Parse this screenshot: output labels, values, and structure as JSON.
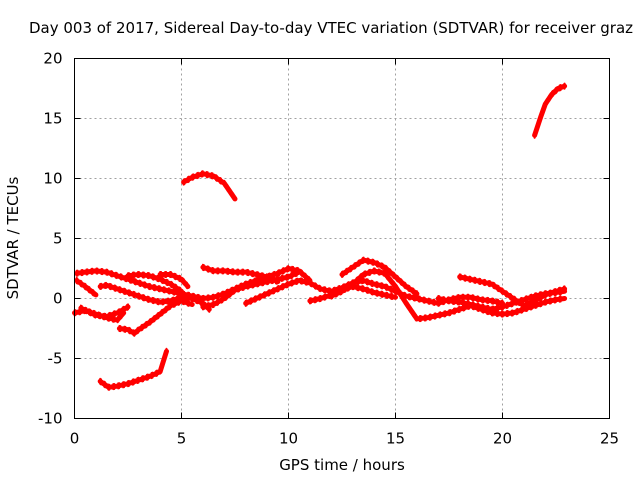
{
  "chart_data": {
    "type": "line",
    "title": "Day 003 of 2017, Sidereal Day-to-day VTEC variation (SDTVAR) for receiver graz",
    "xlabel": "GPS time / hours",
    "ylabel": "SDTVAR / TECUs",
    "xlim": [
      0,
      25
    ],
    "ylim": [
      -10,
      20
    ],
    "xticks": [
      0,
      5,
      10,
      15,
      20,
      25
    ],
    "yticks": [
      -10,
      -5,
      0,
      5,
      10,
      15,
      20
    ],
    "xtick_labels": [
      "0",
      "5",
      "10",
      "15",
      "20",
      "25"
    ],
    "ytick_labels": [
      "-10",
      "-5",
      "0",
      "5",
      "10",
      "15",
      "20"
    ],
    "grid": true,
    "color": "#ff0000",
    "series": [
      {
        "name": "s1",
        "x": [
          0.1,
          0.5,
          1.0,
          1.5,
          2.0,
          2.5,
          3.0,
          3.5,
          4.0,
          4.5,
          5.0,
          5.5,
          6.0,
          6.5,
          7.0,
          7.5,
          8.0,
          8.5,
          9.0,
          9.5,
          10.0,
          10.5,
          11.0
        ],
        "y": [
          2.1,
          2.2,
          2.3,
          2.2,
          1.9,
          1.6,
          1.3,
          1.0,
          0.8,
          0.6,
          0.4,
          0.2,
          0.0,
          0.1,
          0.4,
          0.8,
          1.2,
          1.5,
          1.8,
          2.1,
          2.5,
          2.3,
          1.5
        ]
      },
      {
        "name": "s2",
        "x": [
          0.1,
          0.5,
          1.0
        ],
        "y": [
          1.5,
          1.0,
          0.3
        ]
      },
      {
        "name": "s3",
        "x": [
          0.0,
          0.5,
          1.0,
          1.5,
          2.0,
          2.3
        ],
        "y": [
          -1.2,
          -1.0,
          -1.3,
          -1.6,
          -1.8,
          -1.2
        ]
      },
      {
        "name": "s4",
        "x": [
          0.3,
          1.0,
          1.5,
          2.0,
          2.5
        ],
        "y": [
          -0.8,
          -1.4,
          -1.5,
          -1.2,
          -0.7
        ]
      },
      {
        "name": "s5",
        "x": [
          1.2,
          1.6,
          2.0,
          2.5,
          3.0,
          3.5,
          4.0,
          4.3
        ],
        "y": [
          -6.9,
          -7.4,
          -7.3,
          -7.1,
          -6.8,
          -6.5,
          -6.1,
          -4.4
        ]
      },
      {
        "name": "s6",
        "x": [
          1.2,
          1.5,
          2.0,
          2.5,
          3.0,
          3.5,
          4.0,
          4.5,
          5.0,
          5.5,
          6.0,
          6.3
        ],
        "y": [
          1.0,
          1.1,
          0.8,
          0.5,
          0.2,
          -0.1,
          -0.3,
          -0.2,
          0.1,
          0.0,
          -0.4,
          -0.9
        ]
      },
      {
        "name": "s7",
        "x": [
          2.1,
          2.5,
          2.8,
          3.0,
          3.5,
          4.0,
          4.5,
          5.0,
          5.5
        ],
        "y": [
          -2.5,
          -2.6,
          -2.9,
          -2.6,
          -2.0,
          -1.3,
          -0.6,
          -0.2,
          -0.5
        ]
      },
      {
        "name": "s8",
        "x": [
          2.5,
          3.0,
          3.5,
          4.0,
          4.5,
          5.0
        ],
        "y": [
          1.9,
          2.0,
          1.9,
          1.6,
          1.2,
          0.6
        ]
      },
      {
        "name": "s9",
        "x": [
          4.0,
          4.5,
          5.0,
          5.3
        ],
        "y": [
          2.0,
          2.0,
          1.6,
          1.0
        ]
      },
      {
        "name": "s10",
        "x": [
          5.1,
          5.5,
          6.0,
          6.5,
          7.0,
          7.5
        ],
        "y": [
          9.7,
          10.1,
          10.4,
          10.2,
          9.6,
          8.3
        ]
      },
      {
        "name": "s11",
        "x": [
          6.0,
          6.5,
          7.0,
          7.5,
          8.0,
          8.5,
          9.0,
          9.5
        ],
        "y": [
          2.6,
          2.3,
          2.3,
          2.2,
          2.2,
          2.0,
          1.8,
          1.4
        ]
      },
      {
        "name": "s12",
        "x": [
          6.0,
          6.5,
          7.0,
          7.5,
          8.0,
          8.5,
          9.0,
          9.5,
          10.0,
          10.5
        ],
        "y": [
          -0.7,
          -0.5,
          0.0,
          0.7,
          1.0,
          1.2,
          1.4,
          1.6,
          1.8,
          2.2
        ]
      },
      {
        "name": "s13",
        "x": [
          8.0,
          8.5,
          9.0,
          9.5,
          10.0,
          10.5,
          11.0,
          11.5,
          12.0,
          12.5,
          13.0,
          13.5,
          14.0,
          14.5,
          15.0,
          15.5,
          16.0,
          16.5,
          17.0,
          17.5,
          18.0,
          18.5,
          19.0,
          19.5,
          20.0
        ],
        "y": [
          -0.4,
          0.0,
          0.4,
          0.8,
          1.2,
          1.5,
          1.3,
          0.8,
          0.6,
          0.9,
          1.3,
          1.5,
          1.2,
          1.0,
          0.6,
          0.2,
          0.0,
          -0.2,
          -0.4,
          -0.1,
          0.1,
          0.1,
          -0.1,
          -0.2,
          -0.4
        ]
      },
      {
        "name": "s14",
        "x": [
          11.0,
          11.5,
          12.0,
          12.5,
          13.0,
          13.5,
          14.0,
          14.5,
          15.0
        ],
        "y": [
          -0.2,
          0.0,
          0.3,
          0.7,
          1.0,
          0.8,
          0.5,
          0.3,
          0.1
        ]
      },
      {
        "name": "s15",
        "x": [
          12.5,
          13.0,
          13.5,
          14.0,
          14.5,
          15.0,
          15.5,
          16.0
        ],
        "y": [
          2.0,
          2.6,
          3.2,
          3.0,
          2.6,
          1.8,
          1.0,
          0.4
        ]
      },
      {
        "name": "s16",
        "x": [
          12.0,
          12.5,
          13.0,
          13.5,
          14.0,
          14.5,
          15.0,
          15.5,
          16.0,
          16.5,
          17.0,
          17.5,
          18.0,
          18.5,
          19.0,
          19.5,
          20.0,
          20.5,
          21.0,
          21.5,
          22.0,
          22.5,
          22.9
        ],
        "y": [
          0.2,
          0.6,
          1.2,
          2.0,
          2.3,
          2.1,
          1.0,
          -0.4,
          -1.7,
          -1.6,
          -1.4,
          -1.2,
          -0.9,
          -0.6,
          -0.9,
          -1.2,
          -1.3,
          -1.2,
          -0.9,
          -0.6,
          -0.3,
          -0.1,
          0.0
        ]
      },
      {
        "name": "s17",
        "x": [
          17.0,
          17.5,
          18.0,
          18.5,
          19.0,
          19.5,
          20.0,
          20.5,
          21.0,
          21.5,
          22.0,
          22.5,
          22.9
        ],
        "y": [
          0.0,
          -0.2,
          -0.3,
          -0.5,
          -0.7,
          -0.9,
          -0.7,
          -0.4,
          -0.1,
          0.2,
          0.4,
          0.5,
          0.6
        ]
      },
      {
        "name": "s18",
        "x": [
          18.0,
          18.5,
          19.0,
          19.5,
          20.0,
          20.5,
          21.0,
          21.5,
          22.0,
          22.5,
          22.9
        ],
        "y": [
          1.8,
          1.6,
          1.4,
          1.2,
          0.6,
          0.0,
          -0.6,
          -0.2,
          0.3,
          0.6,
          0.8
        ]
      },
      {
        "name": "s19",
        "x": [
          21.5,
          21.8,
          22.0,
          22.3,
          22.6,
          22.9
        ],
        "y": [
          13.6,
          15.2,
          16.2,
          17.0,
          17.5,
          17.7
        ]
      }
    ]
  }
}
